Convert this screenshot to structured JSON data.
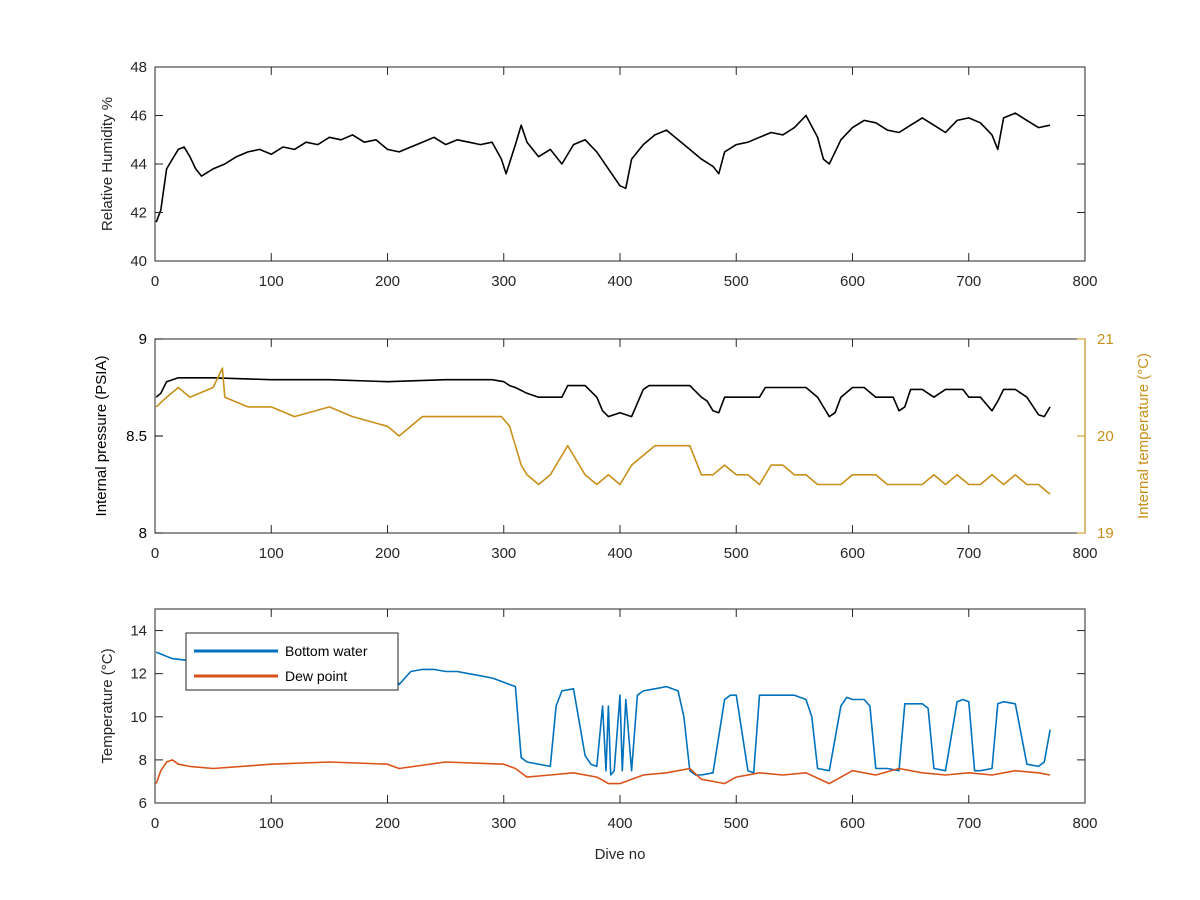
{
  "chart_data": [
    {
      "type": "line",
      "xlim": [
        0,
        800
      ],
      "ylim": [
        40,
        48
      ],
      "xticks": [
        0,
        100,
        200,
        300,
        400,
        500,
        600,
        700,
        800
      ],
      "yticks": [
        40,
        42,
        44,
        46,
        48
      ],
      "ylabel": "Relative Humidity %",
      "xlabel": "",
      "grid": false,
      "series": [
        {
          "color": "#000000",
          "x": [
            1,
            5,
            10,
            15,
            20,
            25,
            30,
            35,
            40,
            50,
            60,
            70,
            80,
            90,
            100,
            110,
            120,
            130,
            140,
            150,
            160,
            170,
            180,
            190,
            200,
            210,
            220,
            230,
            240,
            250,
            260,
            270,
            280,
            290,
            298,
            302,
            310,
            315,
            320,
            330,
            340,
            350,
            360,
            370,
            380,
            390,
            400,
            405,
            410,
            420,
            430,
            440,
            450,
            460,
            470,
            480,
            485,
            490,
            500,
            510,
            520,
            530,
            540,
            550,
            560,
            570,
            575,
            580,
            590,
            600,
            610,
            620,
            630,
            640,
            650,
            660,
            670,
            680,
            690,
            700,
            710,
            720,
            725,
            730,
            740,
            750,
            760,
            770
          ],
          "y": [
            41.6,
            42.1,
            43.8,
            44.2,
            44.6,
            44.7,
            44.3,
            43.8,
            43.5,
            43.8,
            44.0,
            44.3,
            44.5,
            44.6,
            44.4,
            44.7,
            44.6,
            44.9,
            44.8,
            45.1,
            45.0,
            45.2,
            44.9,
            45.0,
            44.6,
            44.5,
            44.7,
            44.9,
            45.1,
            44.8,
            45.0,
            44.9,
            44.8,
            44.9,
            44.2,
            43.6,
            44.8,
            45.6,
            44.9,
            44.3,
            44.6,
            44.0,
            44.8,
            45.0,
            44.5,
            43.8,
            43.1,
            43.0,
            44.2,
            44.8,
            45.2,
            45.4,
            45.0,
            44.6,
            44.2,
            43.9,
            43.6,
            44.5,
            44.8,
            44.9,
            45.1,
            45.3,
            45.2,
            45.5,
            46.0,
            45.1,
            44.2,
            44.0,
            45.0,
            45.5,
            45.8,
            45.7,
            45.4,
            45.3,
            45.6,
            45.9,
            45.6,
            45.3,
            45.8,
            45.9,
            45.7,
            45.2,
            44.6,
            45.9,
            46.1,
            45.8,
            45.5,
            45.6
          ]
        }
      ]
    },
    {
      "type": "line",
      "xlim": [
        0,
        800
      ],
      "ylim": [
        8,
        9
      ],
      "ylim_right": [
        19,
        21
      ],
      "xticks": [
        0,
        100,
        200,
        300,
        400,
        500,
        600,
        700,
        800
      ],
      "yticks": [
        8,
        8.5,
        9
      ],
      "yticks_right": [
        19,
        20,
        21
      ],
      "ylabel": "Internal pressure (PSIA)",
      "ylabel_right": "Internal temperature (°C)",
      "xlabel": "",
      "grid": false,
      "series": [
        {
          "axis": "left",
          "color": "#000000",
          "x": [
            1,
            5,
            10,
            20,
            50,
            100,
            150,
            200,
            250,
            290,
            300,
            305,
            310,
            320,
            330,
            340,
            350,
            355,
            360,
            370,
            380,
            385,
            390,
            400,
            410,
            420,
            425,
            430,
            440,
            450,
            460,
            470,
            475,
            480,
            485,
            490,
            500,
            510,
            520,
            525,
            530,
            540,
            550,
            560,
            570,
            575,
            580,
            585,
            590,
            600,
            610,
            620,
            630,
            635,
            640,
            645,
            650,
            660,
            670,
            680,
            690,
            695,
            700,
            710,
            720,
            725,
            730,
            740,
            750,
            760,
            765,
            770
          ],
          "y": [
            8.7,
            8.72,
            8.78,
            8.8,
            8.8,
            8.79,
            8.79,
            8.78,
            8.79,
            8.79,
            8.78,
            8.76,
            8.75,
            8.72,
            8.7,
            8.7,
            8.7,
            8.76,
            8.76,
            8.76,
            8.7,
            8.63,
            8.6,
            8.62,
            8.6,
            8.74,
            8.76,
            8.76,
            8.76,
            8.76,
            8.76,
            8.7,
            8.68,
            8.63,
            8.62,
            8.7,
            8.7,
            8.7,
            8.7,
            8.75,
            8.75,
            8.75,
            8.75,
            8.75,
            8.7,
            8.65,
            8.6,
            8.62,
            8.7,
            8.75,
            8.75,
            8.7,
            8.7,
            8.7,
            8.63,
            8.65,
            8.74,
            8.74,
            8.7,
            8.74,
            8.74,
            8.74,
            8.7,
            8.7,
            8.63,
            8.68,
            8.74,
            8.74,
            8.7,
            8.61,
            8.6,
            8.65
          ]
        },
        {
          "axis": "right",
          "color": "#C8901A",
          "x": [
            1,
            10,
            20,
            30,
            50,
            58,
            60,
            80,
            100,
            120,
            150,
            170,
            200,
            210,
            230,
            250,
            270,
            290,
            298,
            305,
            310,
            315,
            320,
            330,
            340,
            350,
            355,
            360,
            370,
            380,
            390,
            400,
            410,
            420,
            430,
            440,
            450,
            460,
            470,
            480,
            490,
            500,
            510,
            520,
            530,
            540,
            550,
            560,
            570,
            580,
            590,
            600,
            610,
            620,
            630,
            640,
            650,
            660,
            670,
            680,
            690,
            700,
            710,
            720,
            730,
            740,
            750,
            760,
            770
          ],
          "y": [
            20.3,
            20.4,
            20.5,
            20.4,
            20.5,
            20.7,
            20.4,
            20.3,
            20.3,
            20.2,
            20.3,
            20.2,
            20.1,
            20.0,
            20.2,
            20.2,
            20.2,
            20.2,
            20.2,
            20.1,
            19.9,
            19.7,
            19.6,
            19.5,
            19.6,
            19.8,
            19.9,
            19.8,
            19.6,
            19.5,
            19.6,
            19.5,
            19.7,
            19.8,
            19.9,
            19.9,
            19.9,
            19.9,
            19.6,
            19.6,
            19.7,
            19.6,
            19.6,
            19.5,
            19.7,
            19.7,
            19.6,
            19.6,
            19.5,
            19.5,
            19.5,
            19.6,
            19.6,
            19.6,
            19.5,
            19.5,
            19.5,
            19.5,
            19.6,
            19.5,
            19.6,
            19.5,
            19.5,
            19.6,
            19.5,
            19.6,
            19.5,
            19.5,
            19.4
          ]
        }
      ]
    },
    {
      "type": "line",
      "xlim": [
        0,
        800
      ],
      "ylim": [
        6,
        15
      ],
      "xticks": [
        0,
        100,
        200,
        300,
        400,
        500,
        600,
        700,
        800
      ],
      "yticks": [
        6,
        8,
        10,
        12,
        14
      ],
      "ylabel": "Temperature (°C)",
      "xlabel": "Dive no",
      "grid": false,
      "legend": "top-left",
      "series": [
        {
          "name": "Bottom water",
          "color": "#0072BD",
          "x": [
            1,
            10,
            15,
            30,
            60,
            100,
            150,
            200,
            205,
            210,
            220,
            230,
            240,
            250,
            260,
            270,
            280,
            290,
            300,
            310,
            315,
            320,
            340,
            345,
            350,
            360,
            370,
            375,
            380,
            385,
            388,
            390,
            392,
            395,
            400,
            402,
            405,
            410,
            415,
            420,
            430,
            440,
            450,
            455,
            460,
            465,
            470,
            480,
            490,
            495,
            500,
            510,
            515,
            520,
            530,
            540,
            550,
            560,
            565,
            570,
            580,
            590,
            595,
            600,
            610,
            615,
            620,
            630,
            640,
            645,
            650,
            660,
            665,
            670,
            680,
            690,
            695,
            700,
            705,
            710,
            720,
            725,
            730,
            740,
            750,
            760,
            765,
            770
          ],
          "y": [
            13.0,
            12.8,
            12.7,
            12.6,
            12.6,
            12.4,
            12.1,
            11.9,
            11.9,
            11.5,
            12.1,
            12.2,
            12.2,
            12.1,
            12.1,
            12.0,
            11.9,
            11.8,
            11.6,
            11.4,
            8.1,
            7.9,
            7.7,
            10.5,
            11.2,
            11.3,
            8.2,
            7.8,
            7.7,
            10.5,
            7.5,
            10.5,
            7.3,
            7.5,
            11.0,
            7.5,
            10.8,
            7.5,
            11.0,
            11.2,
            11.3,
            11.4,
            11.2,
            10.0,
            7.5,
            7.3,
            7.3,
            7.4,
            10.8,
            11.0,
            11.0,
            7.5,
            7.4,
            11.0,
            11.0,
            11.0,
            11.0,
            10.8,
            10.0,
            7.6,
            7.5,
            10.5,
            10.9,
            10.8,
            10.8,
            10.5,
            7.6,
            7.6,
            7.5,
            10.6,
            10.6,
            10.6,
            10.4,
            7.6,
            7.5,
            10.7,
            10.8,
            10.7,
            7.5,
            7.5,
            7.6,
            10.6,
            10.7,
            10.6,
            7.8,
            7.7,
            7.9,
            9.4
          ]
        },
        {
          "name": "Dew point",
          "color": "#D95319",
          "x": [
            1,
            5,
            10,
            15,
            20,
            30,
            50,
            100,
            150,
            200,
            210,
            250,
            300,
            310,
            320,
            340,
            360,
            380,
            390,
            400,
            410,
            420,
            440,
            460,
            470,
            480,
            490,
            500,
            520,
            540,
            560,
            580,
            600,
            620,
            640,
            660,
            680,
            700,
            720,
            740,
            760,
            770
          ],
          "y": [
            6.9,
            7.5,
            7.9,
            8.0,
            7.8,
            7.7,
            7.6,
            7.8,
            7.9,
            7.8,
            7.6,
            7.9,
            7.8,
            7.6,
            7.2,
            7.3,
            7.4,
            7.2,
            6.9,
            6.9,
            7.1,
            7.3,
            7.4,
            7.6,
            7.1,
            7.0,
            6.9,
            7.2,
            7.4,
            7.3,
            7.4,
            6.9,
            7.5,
            7.3,
            7.6,
            7.4,
            7.3,
            7.4,
            7.3,
            7.5,
            7.4,
            7.3
          ]
        }
      ]
    }
  ]
}
